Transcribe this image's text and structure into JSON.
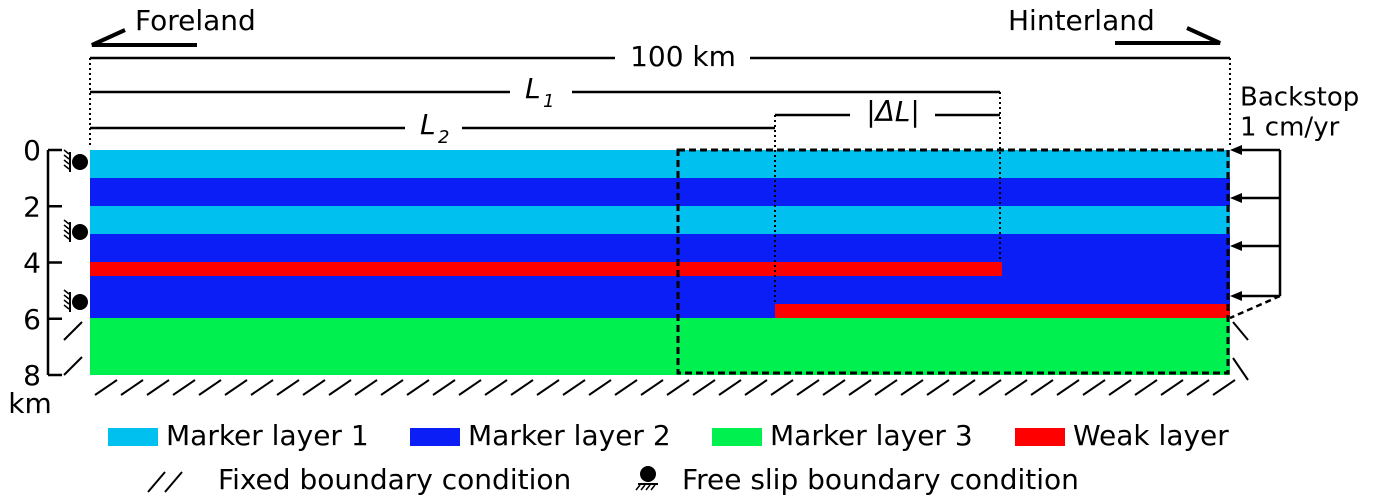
{
  "header": {
    "left": "Foreland",
    "right": "Hinterland"
  },
  "dimensions": {
    "total": "100 km",
    "l1": {
      "symbol": "L",
      "subscript": "1"
    },
    "l2": {
      "symbol": "L",
      "subscript": "2"
    },
    "delta": "|ΔL|"
  },
  "backstop": {
    "line1": "Backstop",
    "line2": "1 cm/yr"
  },
  "depth_axis": {
    "ticks": [
      "0",
      "2",
      "4",
      "6",
      "8"
    ],
    "unit": "km"
  },
  "legend": {
    "items": [
      "Marker layer 1",
      "Marker layer 2",
      "Marker layer 3",
      "Weak layer"
    ],
    "boundaries": [
      "Fixed boundary condition",
      "Free slip boundary condition"
    ]
  }
}
